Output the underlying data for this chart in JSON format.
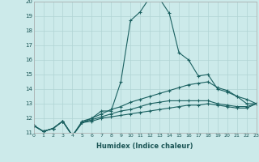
{
  "xlabel": "Humidex (Indice chaleur)",
  "background_color": "#cceaea",
  "grid_color": "#b0d4d4",
  "line_color": "#1a6060",
  "x_min": 0,
  "x_max": 23,
  "y_min": 11,
  "y_max": 20,
  "series": [
    {
      "x": [
        0,
        1,
        2,
        3,
        4,
        5,
        6,
        7,
        8,
        9,
        10,
        11,
        12,
        13,
        14,
        15,
        16,
        17,
        18,
        19,
        20,
        21,
        22,
        23
      ],
      "y": [
        11.5,
        11.1,
        11.3,
        11.8,
        10.8,
        11.7,
        12.0,
        12.5,
        12.5,
        14.5,
        18.7,
        19.3,
        20.3,
        20.2,
        19.2,
        16.5,
        16.0,
        14.9,
        15.0,
        14.0,
        13.8,
        13.5,
        13.0,
        13.0
      ]
    },
    {
      "x": [
        0,
        1,
        2,
        3,
        4,
        5,
        6,
        7,
        8,
        9,
        10,
        11,
        12,
        13,
        14,
        15,
        16,
        17,
        18,
        19,
        20,
        21,
        22,
        23
      ],
      "y": [
        11.5,
        11.1,
        11.3,
        11.8,
        10.8,
        11.8,
        12.0,
        12.3,
        12.6,
        12.8,
        13.1,
        13.3,
        13.5,
        13.7,
        13.9,
        14.1,
        14.3,
        14.4,
        14.5,
        14.1,
        13.9,
        13.5,
        13.3,
        13.0
      ]
    },
    {
      "x": [
        0,
        1,
        2,
        3,
        4,
        5,
        6,
        7,
        8,
        9,
        10,
        11,
        12,
        13,
        14,
        15,
        16,
        17,
        18,
        19,
        20,
        21,
        22,
        23
      ],
      "y": [
        11.5,
        11.1,
        11.3,
        11.8,
        10.8,
        11.7,
        11.9,
        12.1,
        12.3,
        12.5,
        12.6,
        12.8,
        13.0,
        13.1,
        13.2,
        13.2,
        13.2,
        13.2,
        13.2,
        13.0,
        12.9,
        12.8,
        12.8,
        13.0
      ]
    },
    {
      "x": [
        0,
        1,
        2,
        3,
        4,
        5,
        6,
        7,
        8,
        9,
        10,
        11,
        12,
        13,
        14,
        15,
        16,
        17,
        18,
        19,
        20,
        21,
        22,
        23
      ],
      "y": [
        11.5,
        11.1,
        11.3,
        11.8,
        10.8,
        11.7,
        11.8,
        12.0,
        12.1,
        12.2,
        12.3,
        12.4,
        12.5,
        12.6,
        12.7,
        12.8,
        12.9,
        12.9,
        13.0,
        12.9,
        12.8,
        12.7,
        12.7,
        13.0
      ]
    }
  ]
}
